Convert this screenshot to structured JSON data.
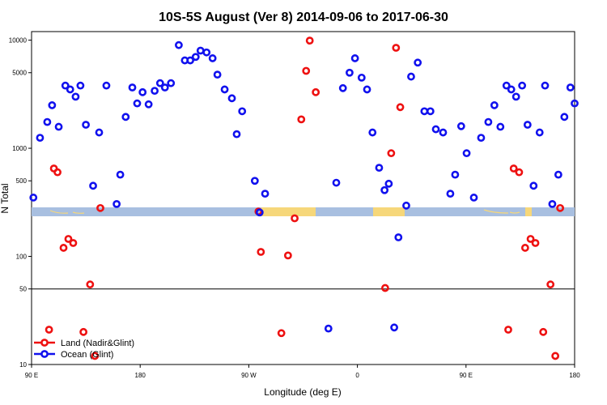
{
  "chart_data": {
    "type": "scatter",
    "title": "10S-5S August (Ver 8)   2014-09-06 to 2017-06-30",
    "xlabel": "Longitude (deg E)",
    "ylabel": "N Total",
    "x_ticks": [
      {
        "lon": 90,
        "label": "90 E"
      },
      {
        "lon": 180,
        "label": "180"
      },
      {
        "lon": 270,
        "label": "90 W"
      },
      {
        "lon": 360,
        "label": "0"
      },
      {
        "lon": 450,
        "label": "90 E"
      },
      {
        "lon": 540,
        "label": "180"
      }
    ],
    "y_scale": "log",
    "ylim": [
      10,
      12000
    ],
    "y_ticks": [
      {
        "value": 10,
        "label": "10"
      },
      {
        "value": 50,
        "label": "50"
      },
      {
        "value": 100,
        "label": "100"
      },
      {
        "value": 500,
        "label": "500"
      },
      {
        "value": 1000,
        "label": "1000"
      },
      {
        "value": 5000,
        "label": "5000"
      },
      {
        "value": 10000,
        "label": "10000"
      }
    ],
    "xlim": [
      90,
      540
    ],
    "reference_line_y": 50,
    "grid": false,
    "legend_position": "bottom-left",
    "series": [
      {
        "name": "Land (Nadir&Glint)",
        "color": "#ee1111",
        "points": [
          [
            104.5,
            21
          ],
          [
            108.5,
            650
          ],
          [
            111.5,
            600
          ],
          [
            116.5,
            120
          ],
          [
            120.5,
            145
          ],
          [
            124.5,
            133
          ],
          [
            133.0,
            20
          ],
          [
            138.5,
            55
          ],
          [
            142.5,
            12
          ],
          [
            147.0,
            280
          ],
          [
            278.0,
            260
          ],
          [
            280.0,
            110
          ],
          [
            297.0,
            19.5
          ],
          [
            302.5,
            102
          ],
          [
            308.0,
            225
          ],
          [
            313.5,
            1850
          ],
          [
            317.5,
            5200
          ],
          [
            320.5,
            9900
          ],
          [
            325.5,
            3300
          ],
          [
            383.0,
            51
          ],
          [
            388.0,
            900
          ],
          [
            392.0,
            8500
          ],
          [
            395.5,
            2400
          ],
          [
            485.0,
            21
          ],
          [
            489.5,
            650
          ],
          [
            494.0,
            600
          ],
          [
            499.0,
            120
          ],
          [
            503.5,
            145
          ],
          [
            507.5,
            133
          ],
          [
            514.0,
            20
          ],
          [
            520.0,
            55
          ],
          [
            524.0,
            12
          ],
          [
            528.0,
            280
          ]
        ]
      },
      {
        "name": "Ocean (Glint)",
        "color": "#1111ee",
        "points": [
          [
            91.5,
            350
          ],
          [
            97.0,
            1250
          ],
          [
            103.0,
            1750
          ],
          [
            107.0,
            2500
          ],
          [
            112.5,
            1580
          ],
          [
            118.0,
            3800
          ],
          [
            122.0,
            3500
          ],
          [
            126.5,
            3000
          ],
          [
            130.5,
            3800
          ],
          [
            135.0,
            1650
          ],
          [
            141.0,
            450
          ],
          [
            146.0,
            1400
          ],
          [
            152.0,
            3800
          ],
          [
            160.5,
            305
          ],
          [
            163.5,
            570
          ],
          [
            168.0,
            1950
          ],
          [
            173.5,
            3650
          ],
          [
            177.5,
            2600
          ],
          [
            182.0,
            3300
          ],
          [
            187.0,
            2550
          ],
          [
            192.0,
            3400
          ],
          [
            196.5,
            4000
          ],
          [
            200.5,
            3650
          ],
          [
            205.5,
            4000
          ],
          [
            212.0,
            9000
          ],
          [
            217.0,
            6500
          ],
          [
            221.5,
            6500
          ],
          [
            226.0,
            7000
          ],
          [
            230.0,
            8000
          ],
          [
            235.0,
            7700
          ],
          [
            240.0,
            6800
          ],
          [
            244.0,
            4800
          ],
          [
            250.0,
            3500
          ],
          [
            256.0,
            2900
          ],
          [
            260.0,
            1350
          ],
          [
            264.5,
            2200
          ],
          [
            275.0,
            500
          ],
          [
            279.0,
            255
          ],
          [
            283.5,
            380
          ],
          [
            336.0,
            21.5
          ],
          [
            342.5,
            480
          ],
          [
            348.0,
            3600
          ],
          [
            353.5,
            5000
          ],
          [
            358.0,
            6800
          ],
          [
            363.5,
            4500
          ],
          [
            368.0,
            3500
          ],
          [
            372.5,
            1400
          ],
          [
            378.0,
            660
          ],
          [
            382.5,
            410
          ],
          [
            386.0,
            470
          ],
          [
            390.5,
            22
          ],
          [
            394.0,
            150
          ],
          [
            400.5,
            295
          ],
          [
            404.5,
            4600
          ],
          [
            410.0,
            6200
          ],
          [
            415.5,
            2200
          ],
          [
            420.5,
            2200
          ],
          [
            425.0,
            1500
          ],
          [
            431.0,
            1400
          ],
          [
            437.0,
            380
          ],
          [
            441.0,
            570
          ],
          [
            446.0,
            1600
          ],
          [
            450.5,
            900
          ],
          [
            456.5,
            350
          ],
          [
            462.5,
            1250
          ],
          [
            468.5,
            1750
          ],
          [
            473.5,
            2500
          ],
          [
            478.5,
            1580
          ],
          [
            483.5,
            3800
          ],
          [
            487.5,
            3500
          ],
          [
            491.5,
            3000
          ],
          [
            496.5,
            3800
          ],
          [
            501.0,
            1650
          ],
          [
            506.0,
            450
          ],
          [
            511.0,
            1400
          ],
          [
            515.5,
            3800
          ],
          [
            521.5,
            305
          ],
          [
            526.5,
            570
          ],
          [
            531.5,
            1950
          ],
          [
            536.5,
            3650
          ],
          [
            540.0,
            2600
          ]
        ]
      }
    ]
  }
}
